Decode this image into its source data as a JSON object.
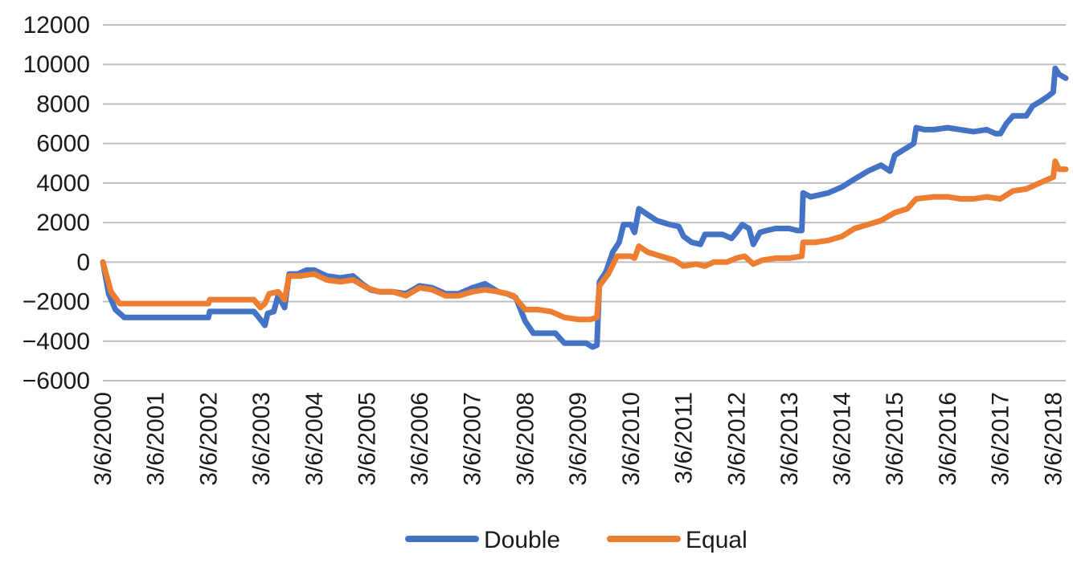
{
  "chart_data": {
    "type": "line",
    "title": "",
    "xlabel": "",
    "ylabel": "",
    "ylim": [
      -6000,
      12000
    ],
    "y_ticks": [
      -6000,
      -4000,
      -2000,
      0,
      2000,
      4000,
      6000,
      8000,
      10000,
      12000
    ],
    "y_tick_labels": [
      "−6000",
      "−4000",
      "−2000",
      "0",
      "2000",
      "4000",
      "6000",
      "8000",
      "10000",
      "12000"
    ],
    "x_range": [
      "3/6/2000",
      "6/1/2018"
    ],
    "x_ticks": [
      "3/6/2000",
      "3/6/2001",
      "3/6/2002",
      "3/6/2003",
      "3/6/2004",
      "3/6/2005",
      "3/6/2006",
      "3/6/2007",
      "3/6/2008",
      "3/6/2009",
      "3/6/2010",
      "3/6/2011",
      "3/6/2012",
      "3/6/2013",
      "3/6/2014",
      "3/6/2015",
      "3/6/2016",
      "3/6/2017",
      "3/6/2018"
    ],
    "grid": true,
    "legend_position": "bottom",
    "series": [
      {
        "name": "Double",
        "color": "#4472C4",
        "points": [
          [
            "3/6/2000",
            0
          ],
          [
            "4/15/2000",
            -1600
          ],
          [
            "6/1/2000",
            -2400
          ],
          [
            "8/1/2000",
            -2800
          ],
          [
            "3/6/2001",
            -2800
          ],
          [
            "9/1/2001",
            -2800
          ],
          [
            "3/6/2002",
            -2800
          ],
          [
            "3/15/2002",
            -2500
          ],
          [
            "9/1/2002",
            -2500
          ],
          [
            "1/15/2003",
            -2500
          ],
          [
            "3/1/2003",
            -2900
          ],
          [
            "4/1/2003",
            -3200
          ],
          [
            "4/20/2003",
            -2600
          ],
          [
            "6/1/2003",
            -2500
          ],
          [
            "7/1/2003",
            -1700
          ],
          [
            "8/15/2003",
            -2300
          ],
          [
            "9/15/2003",
            -600
          ],
          [
            "11/15/2003",
            -600
          ],
          [
            "1/15/2004",
            -400
          ],
          [
            "3/6/2004",
            -400
          ],
          [
            "6/1/2004",
            -700
          ],
          [
            "9/1/2004",
            -800
          ],
          [
            "12/1/2004",
            -700
          ],
          [
            "2/1/2005",
            -1100
          ],
          [
            "4/1/2005",
            -1400
          ],
          [
            "6/1/2005",
            -1500
          ],
          [
            "9/1/2005",
            -1500
          ],
          [
            "12/1/2005",
            -1600
          ],
          [
            "3/6/2006",
            -1200
          ],
          [
            "6/1/2006",
            -1300
          ],
          [
            "9/1/2006",
            -1600
          ],
          [
            "12/1/2006",
            -1600
          ],
          [
            "3/6/2007",
            -1300
          ],
          [
            "6/1/2007",
            -1100
          ],
          [
            "9/1/2007",
            -1500
          ],
          [
            "11/1/2007",
            -1600
          ],
          [
            "1/1/2008",
            -1800
          ],
          [
            "3/6/2008",
            -3000
          ],
          [
            "5/1/2008",
            -3600
          ],
          [
            "8/1/2008",
            -3600
          ],
          [
            "10/1/2008",
            -3600
          ],
          [
            "12/1/2008",
            -4100
          ],
          [
            "3/6/2009",
            -4100
          ],
          [
            "5/1/2009",
            -4100
          ],
          [
            "6/15/2009",
            -4300
          ],
          [
            "7/15/2009",
            -4200
          ],
          [
            "8/1/2009",
            -1000
          ],
          [
            "9/15/2009",
            -500
          ],
          [
            "11/1/2009",
            500
          ],
          [
            "12/15/2009",
            1000
          ],
          [
            "1/15/2010",
            1900
          ],
          [
            "3/6/2010",
            1900
          ],
          [
            "4/1/2010",
            1500
          ],
          [
            "5/1/2010",
            2700
          ],
          [
            "7/1/2010",
            2400
          ],
          [
            "9/1/2010",
            2100
          ],
          [
            "12/1/2010",
            1900
          ],
          [
            "2/1/2011",
            1800
          ],
          [
            "3/6/2011",
            1300
          ],
          [
            "5/1/2011",
            1000
          ],
          [
            "7/1/2011",
            900
          ],
          [
            "8/1/2011",
            1400
          ],
          [
            "10/1/2011",
            1400
          ],
          [
            "12/1/2011",
            1400
          ],
          [
            "2/1/2012",
            1200
          ],
          [
            "3/6/2012",
            1500
          ],
          [
            "4/15/2012",
            1900
          ],
          [
            "6/1/2012",
            1700
          ],
          [
            "7/1/2012",
            900
          ],
          [
            "8/15/2012",
            1500
          ],
          [
            "10/1/2012",
            1600
          ],
          [
            "12/1/2012",
            1700
          ],
          [
            "3/6/2013",
            1700
          ],
          [
            "5/1/2013",
            1600
          ],
          [
            "6/1/2013",
            1600
          ],
          [
            "6/10/2013",
            3500
          ],
          [
            "8/1/2013",
            3300
          ],
          [
            "10/1/2013",
            3400
          ],
          [
            "12/1/2013",
            3500
          ],
          [
            "3/6/2014",
            3800
          ],
          [
            "6/1/2014",
            4200
          ],
          [
            "9/1/2014",
            4600
          ],
          [
            "12/1/2014",
            4900
          ],
          [
            "2/1/2015",
            4600
          ],
          [
            "3/6/2015",
            5400
          ],
          [
            "6/1/2015",
            5800
          ],
          [
            "7/15/2015",
            6000
          ],
          [
            "8/1/2015",
            6800
          ],
          [
            "10/1/2015",
            6700
          ],
          [
            "12/1/2015",
            6700
          ],
          [
            "3/6/2016",
            6800
          ],
          [
            "6/1/2016",
            6700
          ],
          [
            "9/1/2016",
            6600
          ],
          [
            "12/1/2016",
            6700
          ],
          [
            "2/1/2017",
            6500
          ],
          [
            "3/6/2017",
            6500
          ],
          [
            "4/15/2017",
            7000
          ],
          [
            "6/1/2017",
            7400
          ],
          [
            "9/1/2017",
            7400
          ],
          [
            "10/15/2017",
            7900
          ],
          [
            "12/1/2017",
            8100
          ],
          [
            "2/1/2018",
            8400
          ],
          [
            "3/6/2018",
            8600
          ],
          [
            "3/20/2018",
            9800
          ],
          [
            "4/15/2018",
            9500
          ],
          [
            "6/1/2018",
            9300
          ]
        ]
      },
      {
        "name": "Equal",
        "color": "#ED7D31",
        "points": [
          [
            "3/6/2000",
            0
          ],
          [
            "5/1/2000",
            -1500
          ],
          [
            "7/1/2000",
            -2100
          ],
          [
            "3/6/2001",
            -2100
          ],
          [
            "9/1/2001",
            -2100
          ],
          [
            "3/6/2002",
            -2100
          ],
          [
            "3/15/2002",
            -1900
          ],
          [
            "1/15/2003",
            -1900
          ],
          [
            "3/1/2003",
            -2300
          ],
          [
            "4/1/2003",
            -2100
          ],
          [
            "5/1/2003",
            -1600
          ],
          [
            "7/1/2003",
            -1500
          ],
          [
            "8/15/2003",
            -1900
          ],
          [
            "9/15/2003",
            -700
          ],
          [
            "12/1/2003",
            -700
          ],
          [
            "3/6/2004",
            -600
          ],
          [
            "6/1/2004",
            -900
          ],
          [
            "9/1/2004",
            -1000
          ],
          [
            "12/1/2004",
            -900
          ],
          [
            "3/6/2005",
            -1300
          ],
          [
            "6/1/2005",
            -1500
          ],
          [
            "9/1/2005",
            -1500
          ],
          [
            "12/1/2005",
            -1700
          ],
          [
            "3/6/2006",
            -1300
          ],
          [
            "6/1/2006",
            -1400
          ],
          [
            "9/1/2006",
            -1700
          ],
          [
            "12/1/2006",
            -1700
          ],
          [
            "3/6/2007",
            -1500
          ],
          [
            "6/1/2007",
            -1400
          ],
          [
            "9/1/2007",
            -1500
          ],
          [
            "11/1/2007",
            -1600
          ],
          [
            "12/15/2007",
            -1700
          ],
          [
            "3/6/2008",
            -2400
          ],
          [
            "6/1/2008",
            -2400
          ],
          [
            "9/1/2008",
            -2500
          ],
          [
            "12/1/2008",
            -2800
          ],
          [
            "3/6/2009",
            -2900
          ],
          [
            "6/1/2009",
            -2900
          ],
          [
            "7/15/2009",
            -2800
          ],
          [
            "8/1/2009",
            -1200
          ],
          [
            "10/1/2009",
            -600
          ],
          [
            "12/1/2009",
            300
          ],
          [
            "3/6/2010",
            300
          ],
          [
            "4/1/2010",
            200
          ],
          [
            "5/1/2010",
            800
          ],
          [
            "7/1/2010",
            500
          ],
          [
            "10/1/2010",
            300
          ],
          [
            "1/1/2011",
            100
          ],
          [
            "3/6/2011",
            -200
          ],
          [
            "6/1/2011",
            -100
          ],
          [
            "8/1/2011",
            -200
          ],
          [
            "10/1/2011",
            0
          ],
          [
            "1/1/2012",
            0
          ],
          [
            "3/6/2012",
            200
          ],
          [
            "5/1/2012",
            300
          ],
          [
            "7/1/2012",
            -100
          ],
          [
            "9/1/2012",
            100
          ],
          [
            "12/1/2012",
            200
          ],
          [
            "3/6/2013",
            200
          ],
          [
            "6/1/2013",
            300
          ],
          [
            "6/10/2013",
            1000
          ],
          [
            "9/1/2013",
            1000
          ],
          [
            "12/1/2013",
            1100
          ],
          [
            "3/6/2014",
            1300
          ],
          [
            "6/1/2014",
            1700
          ],
          [
            "9/1/2014",
            1900
          ],
          [
            "12/1/2014",
            2100
          ],
          [
            "3/6/2015",
            2500
          ],
          [
            "6/1/2015",
            2700
          ],
          [
            "8/1/2015",
            3200
          ],
          [
            "12/1/2015",
            3300
          ],
          [
            "3/6/2016",
            3300
          ],
          [
            "6/1/2016",
            3200
          ],
          [
            "9/1/2016",
            3200
          ],
          [
            "12/1/2016",
            3300
          ],
          [
            "3/6/2017",
            3200
          ],
          [
            "6/1/2017",
            3600
          ],
          [
            "9/1/2017",
            3700
          ],
          [
            "12/1/2017",
            4000
          ],
          [
            "3/6/2018",
            4300
          ],
          [
            "3/20/2018",
            5100
          ],
          [
            "4/15/2018",
            4700
          ],
          [
            "6/1/2018",
            4700
          ]
        ]
      }
    ]
  }
}
